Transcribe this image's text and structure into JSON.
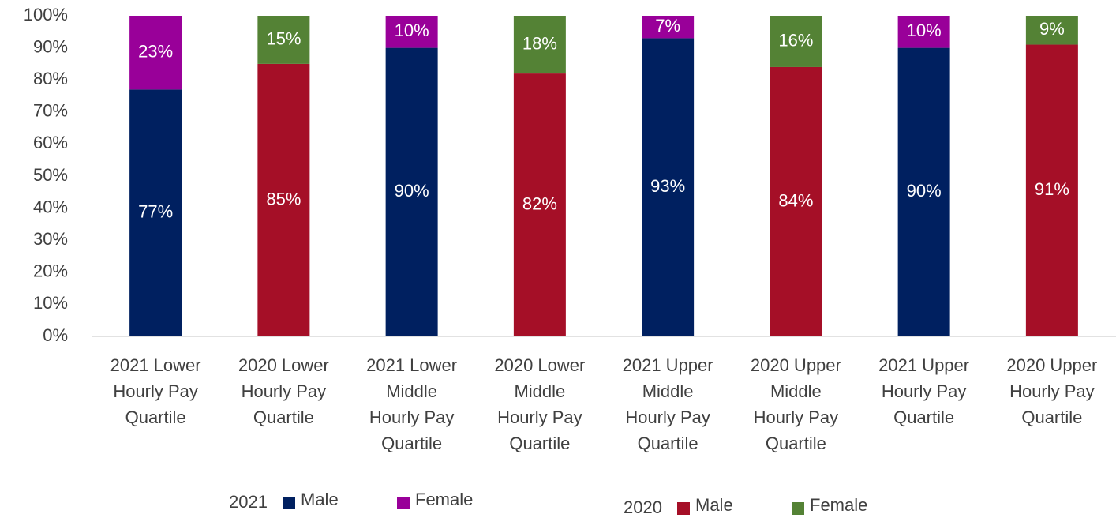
{
  "chart_data": {
    "type": "stacked-bar",
    "categories": [
      "2021 Lower Hourly Pay Quartile",
      "2020 Lower Hourly Pay Quartile",
      "2021 Lower Middle Hourly Pay Quartile",
      "2020 Lower Middle Hourly Pay Quartile",
      "2021 Upper Middle Hourly Pay Quartile",
      "2020 Upper Middle Hourly Pay Quartile",
      "2021 Upper Hourly Pay Quartile",
      "2020 Upper Hourly Pay Quartile"
    ],
    "legend_groups": [
      "2021",
      "2020"
    ],
    "series": [
      {
        "name": "Male",
        "color": "#002060",
        "values": [
          77,
          null,
          90,
          null,
          93,
          null,
          90,
          null
        ],
        "value_labels": [
          "77%",
          null,
          "90%",
          null,
          "93%",
          null,
          "90%",
          null
        ]
      },
      {
        "name": "Female",
        "color": "#990099",
        "values": [
          23,
          null,
          10,
          null,
          7,
          null,
          10,
          null
        ],
        "value_labels": [
          "23%",
          null,
          "10%",
          null,
          "7%",
          null,
          "10%",
          null
        ]
      },
      {
        "name": "Male",
        "color": "#a50f27",
        "values": [
          null,
          85,
          null,
          82,
          null,
          84,
          null,
          91
        ],
        "value_labels": [
          null,
          "85%",
          null,
          "82%",
          null,
          "84%",
          null,
          "91%"
        ]
      },
      {
        "name": "Female",
        "color": "#548235",
        "values": [
          null,
          15,
          null,
          18,
          null,
          16,
          null,
          9
        ],
        "value_labels": [
          null,
          "15%",
          null,
          "18%",
          null,
          "16%",
          null,
          "9%"
        ]
      }
    ],
    "ylim": [
      0,
      100
    ],
    "yticks": [
      {
        "value": 0,
        "label": "0%"
      },
      {
        "value": 10,
        "label": "10%"
      },
      {
        "value": 20,
        "label": "20%"
      },
      {
        "value": 30,
        "label": "30%"
      },
      {
        "value": 40,
        "label": "40%"
      },
      {
        "value": 50,
        "label": "50%"
      },
      {
        "value": 60,
        "label": "60%"
      },
      {
        "value": 70,
        "label": "70%"
      },
      {
        "value": 80,
        "label": "80%"
      },
      {
        "value": 90,
        "label": "90%"
      },
      {
        "value": 100,
        "label": "100%"
      }
    ],
    "grid": false
  }
}
